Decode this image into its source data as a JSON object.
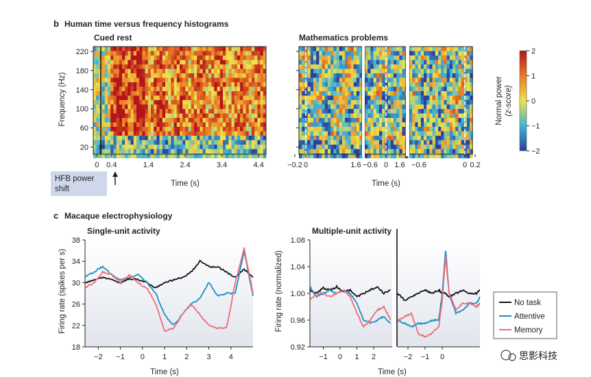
{
  "panel_b": {
    "letter": "b",
    "title": "Human time versus frequency histograms",
    "cued_rest_title": "Cued rest",
    "math_title": "Mathematics problems",
    "ylabel": "Frequency (Hz)",
    "xlabel_left": "Time (s)",
    "xlabel_right": "Time (s)",
    "hfb_label_line1": "HFB power",
    "hfb_label_line2": "shift",
    "colorbar_label_line1": "Normal power",
    "colorbar_label_line2": "(z-score)",
    "colors": {
      "low": "#2b3f9e",
      "mid": "#f0e34c",
      "high": "#b3141b",
      "hfb_box": "#cfd8ea"
    }
  },
  "panel_c": {
    "letter": "c",
    "title": "Macaque electrophysiology",
    "single_title": "Single-unit activity",
    "multi_title": "Multiple-unit activity",
    "ylabel_left": "Firing rate (spikes per s)",
    "ylabel_right": "Firing rate (normalized)",
    "xlabel_left": "Time (s)",
    "xlabel_right": "Time (s)",
    "legend": [
      "No task",
      "Attentive",
      "Memory"
    ],
    "colors": {
      "no_task": "#111111",
      "attentive": "#1a8fc4",
      "memory": "#ee6b78"
    }
  },
  "watermark": "思影科技",
  "chart_data": [
    {
      "type": "heatmap",
      "title": "Cued rest",
      "ylabel": "Frequency (Hz)",
      "xlabel": "Time (s)",
      "xticks": [
        "0",
        "0.4",
        "1.4",
        "2.4",
        "3.4",
        "4.4"
      ],
      "yticks": [
        "20",
        "60",
        "100",
        "140",
        "180",
        "220"
      ],
      "xlim": [
        -0.1,
        4.6
      ],
      "ylim": [
        5,
        230
      ],
      "notes": "Strong high-frequency (HFB) power increase from ~0.4 s onward"
    },
    {
      "type": "heatmap",
      "title": "Mathematics problems",
      "ylabel": "Frequency (Hz)",
      "xlabel": "Time (s)",
      "segments": [
        {
          "xticks": [
            "−0.2",
            "0",
            "1.6"
          ]
        },
        {
          "xticks": [
            "−0.6",
            "0",
            "1.6"
          ]
        },
        {
          "xticks": [
            "−0.6",
            "0",
            "0.2"
          ]
        }
      ],
      "yticks": [
        "20",
        "60",
        "100",
        "140",
        "180",
        "220"
      ]
    },
    {
      "type": "line",
      "title": "Single-unit activity",
      "xlabel": "Time (s)",
      "ylabel": "Firing rate (spikes per s)",
      "xticks": [
        "−2",
        "−1",
        "0",
        "1",
        "2",
        "3",
        "4"
      ],
      "yticks": [
        "18",
        "22",
        "26",
        "30",
        "34",
        "38"
      ],
      "xlim": [
        -2.6,
        5.0
      ],
      "ylim": [
        18,
        38
      ],
      "x": [
        -2.6,
        -2.2,
        -1.8,
        -1.4,
        -1.0,
        -0.6,
        -0.2,
        0.2,
        0.6,
        1.0,
        1.4,
        1.8,
        2.2,
        2.6,
        3.0,
        3.4,
        3.8,
        4.2,
        4.6,
        5.0
      ],
      "series": [
        {
          "name": "No task",
          "values": [
            30,
            30.5,
            31,
            30.5,
            30,
            30.8,
            30.5,
            30,
            29,
            30,
            30.5,
            31,
            32,
            34,
            33,
            33,
            32,
            31,
            32.5,
            31
          ]
        },
        {
          "name": "Attentive",
          "values": [
            31,
            32,
            33,
            31.5,
            30.5,
            31,
            31.5,
            30,
            28,
            24,
            22,
            24,
            26,
            27,
            30,
            27.5,
            28,
            28,
            36,
            27.5
          ]
        },
        {
          "name": "Memory",
          "values": [
            29,
            30,
            32,
            31.5,
            30,
            31.5,
            30,
            29,
            26,
            21,
            21.5,
            24,
            26,
            24,
            22,
            21.5,
            21.5,
            30,
            36.5,
            28
          ]
        }
      ]
    },
    {
      "type": "line",
      "title": "Multiple-unit activity",
      "xlabel": "Time (s)",
      "ylabel": "Firing rate (normalized)",
      "yticks": [
        "0.92",
        "0.96",
        "1.00",
        "1.04",
        "1.08"
      ],
      "ylim": [
        0.92,
        1.08
      ],
      "segments": [
        {
          "xticks": [
            "−1",
            "0",
            "1",
            "2"
          ],
          "xlim": [
            -1.8,
            3.1
          ],
          "x": [
            -1.8,
            -1.4,
            -1.0,
            -0.6,
            -0.2,
            0.2,
            0.6,
            1.0,
            1.4,
            1.8,
            2.2,
            2.6,
            3.0
          ],
          "series": [
            {
              "name": "No task",
              "values": [
                1.005,
                1.0,
                1.008,
                1.005,
                1.01,
                1.002,
                1.005,
                0.995,
                1.0,
                1.005,
                1.01,
                1.0,
                1.005
              ]
            },
            {
              "name": "Attentive",
              "values": [
                1.01,
                0.995,
                1.0,
                1.005,
                1.0,
                1.005,
                1.0,
                0.985,
                0.96,
                0.955,
                0.96,
                0.965,
                0.955
              ]
            },
            {
              "name": "Memory",
              "values": [
                0.99,
                1.0,
                1.0,
                0.995,
                1.0,
                1.005,
                0.995,
                0.97,
                0.95,
                0.96,
                0.975,
                0.98,
                0.96
              ]
            }
          ]
        },
        {
          "xticks": [
            "−2",
            "−1",
            "0"
          ],
          "xlim": [
            -2.6,
            2.2
          ],
          "x": [
            -2.6,
            -2.2,
            -1.8,
            -1.4,
            -1.0,
            -0.6,
            -0.2,
            0.0,
            0.2,
            0.4,
            0.8,
            1.2,
            1.6,
            2.0,
            2.2
          ],
          "series": [
            {
              "name": "No task",
              "values": [
                1.0,
                0.99,
                0.995,
                1.0,
                1.005,
                1.0,
                1.005,
                1.0,
                1.0,
                0.995,
                1.0,
                1.005,
                1.0,
                1.0,
                1.005
              ]
            },
            {
              "name": "Attentive",
              "values": [
                0.96,
                0.955,
                0.95,
                0.955,
                0.955,
                0.96,
                0.96,
                1.0,
                1.065,
                1.0,
                0.97,
                0.975,
                0.985,
                0.985,
                0.995
              ]
            },
            {
              "name": "Memory",
              "values": [
                0.96,
                0.965,
                0.97,
                0.94,
                0.935,
                0.94,
                0.95,
                0.99,
                1.055,
                1.0,
                0.975,
                0.985,
                0.985,
                0.98,
                0.985
              ]
            }
          ]
        }
      ],
      "legend_placement": "right"
    }
  ]
}
